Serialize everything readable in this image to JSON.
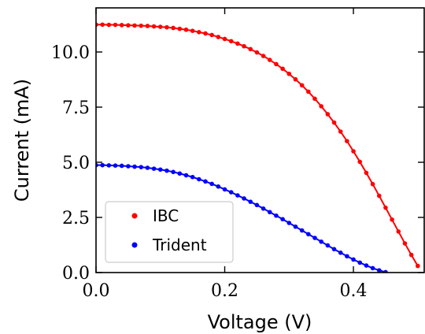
{
  "chart_data": {
    "type": "scatter",
    "xlabel": "Voltage (V)",
    "ylabel": "Current (mA)",
    "xlim": [
      0.0,
      0.51
    ],
    "ylim": [
      0.0,
      12.0
    ],
    "xticks": [
      0.0,
      0.2,
      0.4
    ],
    "xtick_labels": [
      "0.0",
      "0.2",
      "0.4"
    ],
    "yticks": [
      0.0,
      2.5,
      5.0,
      7.5,
      10.0
    ],
    "ytick_labels": [
      "0.0",
      "2.5",
      "5.0",
      "7.5",
      "10.0"
    ],
    "grid": false,
    "legend_position": "lower-left",
    "series": [
      {
        "name": "IBC",
        "color": "#ff0000",
        "fit_curve": true,
        "x": [
          0.0,
          0.01,
          0.02,
          0.03,
          0.04,
          0.05,
          0.06,
          0.07,
          0.08,
          0.09,
          0.1,
          0.11,
          0.12,
          0.13,
          0.14,
          0.15,
          0.16,
          0.17,
          0.18,
          0.19,
          0.2,
          0.21,
          0.22,
          0.23,
          0.24,
          0.25,
          0.26,
          0.27,
          0.28,
          0.29,
          0.3,
          0.31,
          0.32,
          0.33,
          0.34,
          0.35,
          0.36,
          0.37,
          0.38,
          0.39,
          0.4,
          0.41,
          0.42,
          0.43,
          0.44,
          0.45,
          0.46,
          0.47,
          0.48,
          0.49,
          0.5
        ],
        "y": [
          11.24,
          11.24,
          11.23,
          11.23,
          11.22,
          11.21,
          11.2,
          11.19,
          11.18,
          11.16,
          11.14,
          11.12,
          11.09,
          11.05,
          11.01,
          10.96,
          10.9,
          10.84,
          10.77,
          10.68,
          10.59,
          10.49,
          10.38,
          10.26,
          10.13,
          9.98,
          9.82,
          9.64,
          9.45,
          9.24,
          9.01,
          8.76,
          8.49,
          8.2,
          7.88,
          7.54,
          7.18,
          6.8,
          6.39,
          5.96,
          5.5,
          5.02,
          4.52,
          4.01,
          3.48,
          2.94,
          2.4,
          1.86,
          1.32,
          0.8,
          0.3
        ]
      },
      {
        "name": "Trident",
        "color": "#0000ff",
        "fit_curve": true,
        "x": [
          0.0,
          0.01,
          0.02,
          0.03,
          0.04,
          0.05,
          0.06,
          0.07,
          0.08,
          0.09,
          0.1,
          0.11,
          0.12,
          0.13,
          0.14,
          0.15,
          0.16,
          0.17,
          0.18,
          0.19,
          0.2,
          0.21,
          0.22,
          0.23,
          0.24,
          0.25,
          0.26,
          0.27,
          0.28,
          0.29,
          0.3,
          0.31,
          0.32,
          0.33,
          0.34,
          0.35,
          0.36,
          0.37,
          0.38,
          0.39,
          0.4,
          0.41,
          0.42,
          0.43,
          0.44,
          0.45
        ],
        "y": [
          4.87,
          4.87,
          4.86,
          4.85,
          4.84,
          4.82,
          4.8,
          4.78,
          4.75,
          4.71,
          4.67,
          4.62,
          4.56,
          4.49,
          4.41,
          4.33,
          4.23,
          4.13,
          4.02,
          3.9,
          3.77,
          3.64,
          3.5,
          3.36,
          3.21,
          3.06,
          2.9,
          2.74,
          2.58,
          2.42,
          2.25,
          2.08,
          1.91,
          1.74,
          1.57,
          1.4,
          1.23,
          1.06,
          0.9,
          0.74,
          0.59,
          0.45,
          0.32,
          0.2,
          0.1,
          0.02
        ]
      }
    ]
  }
}
